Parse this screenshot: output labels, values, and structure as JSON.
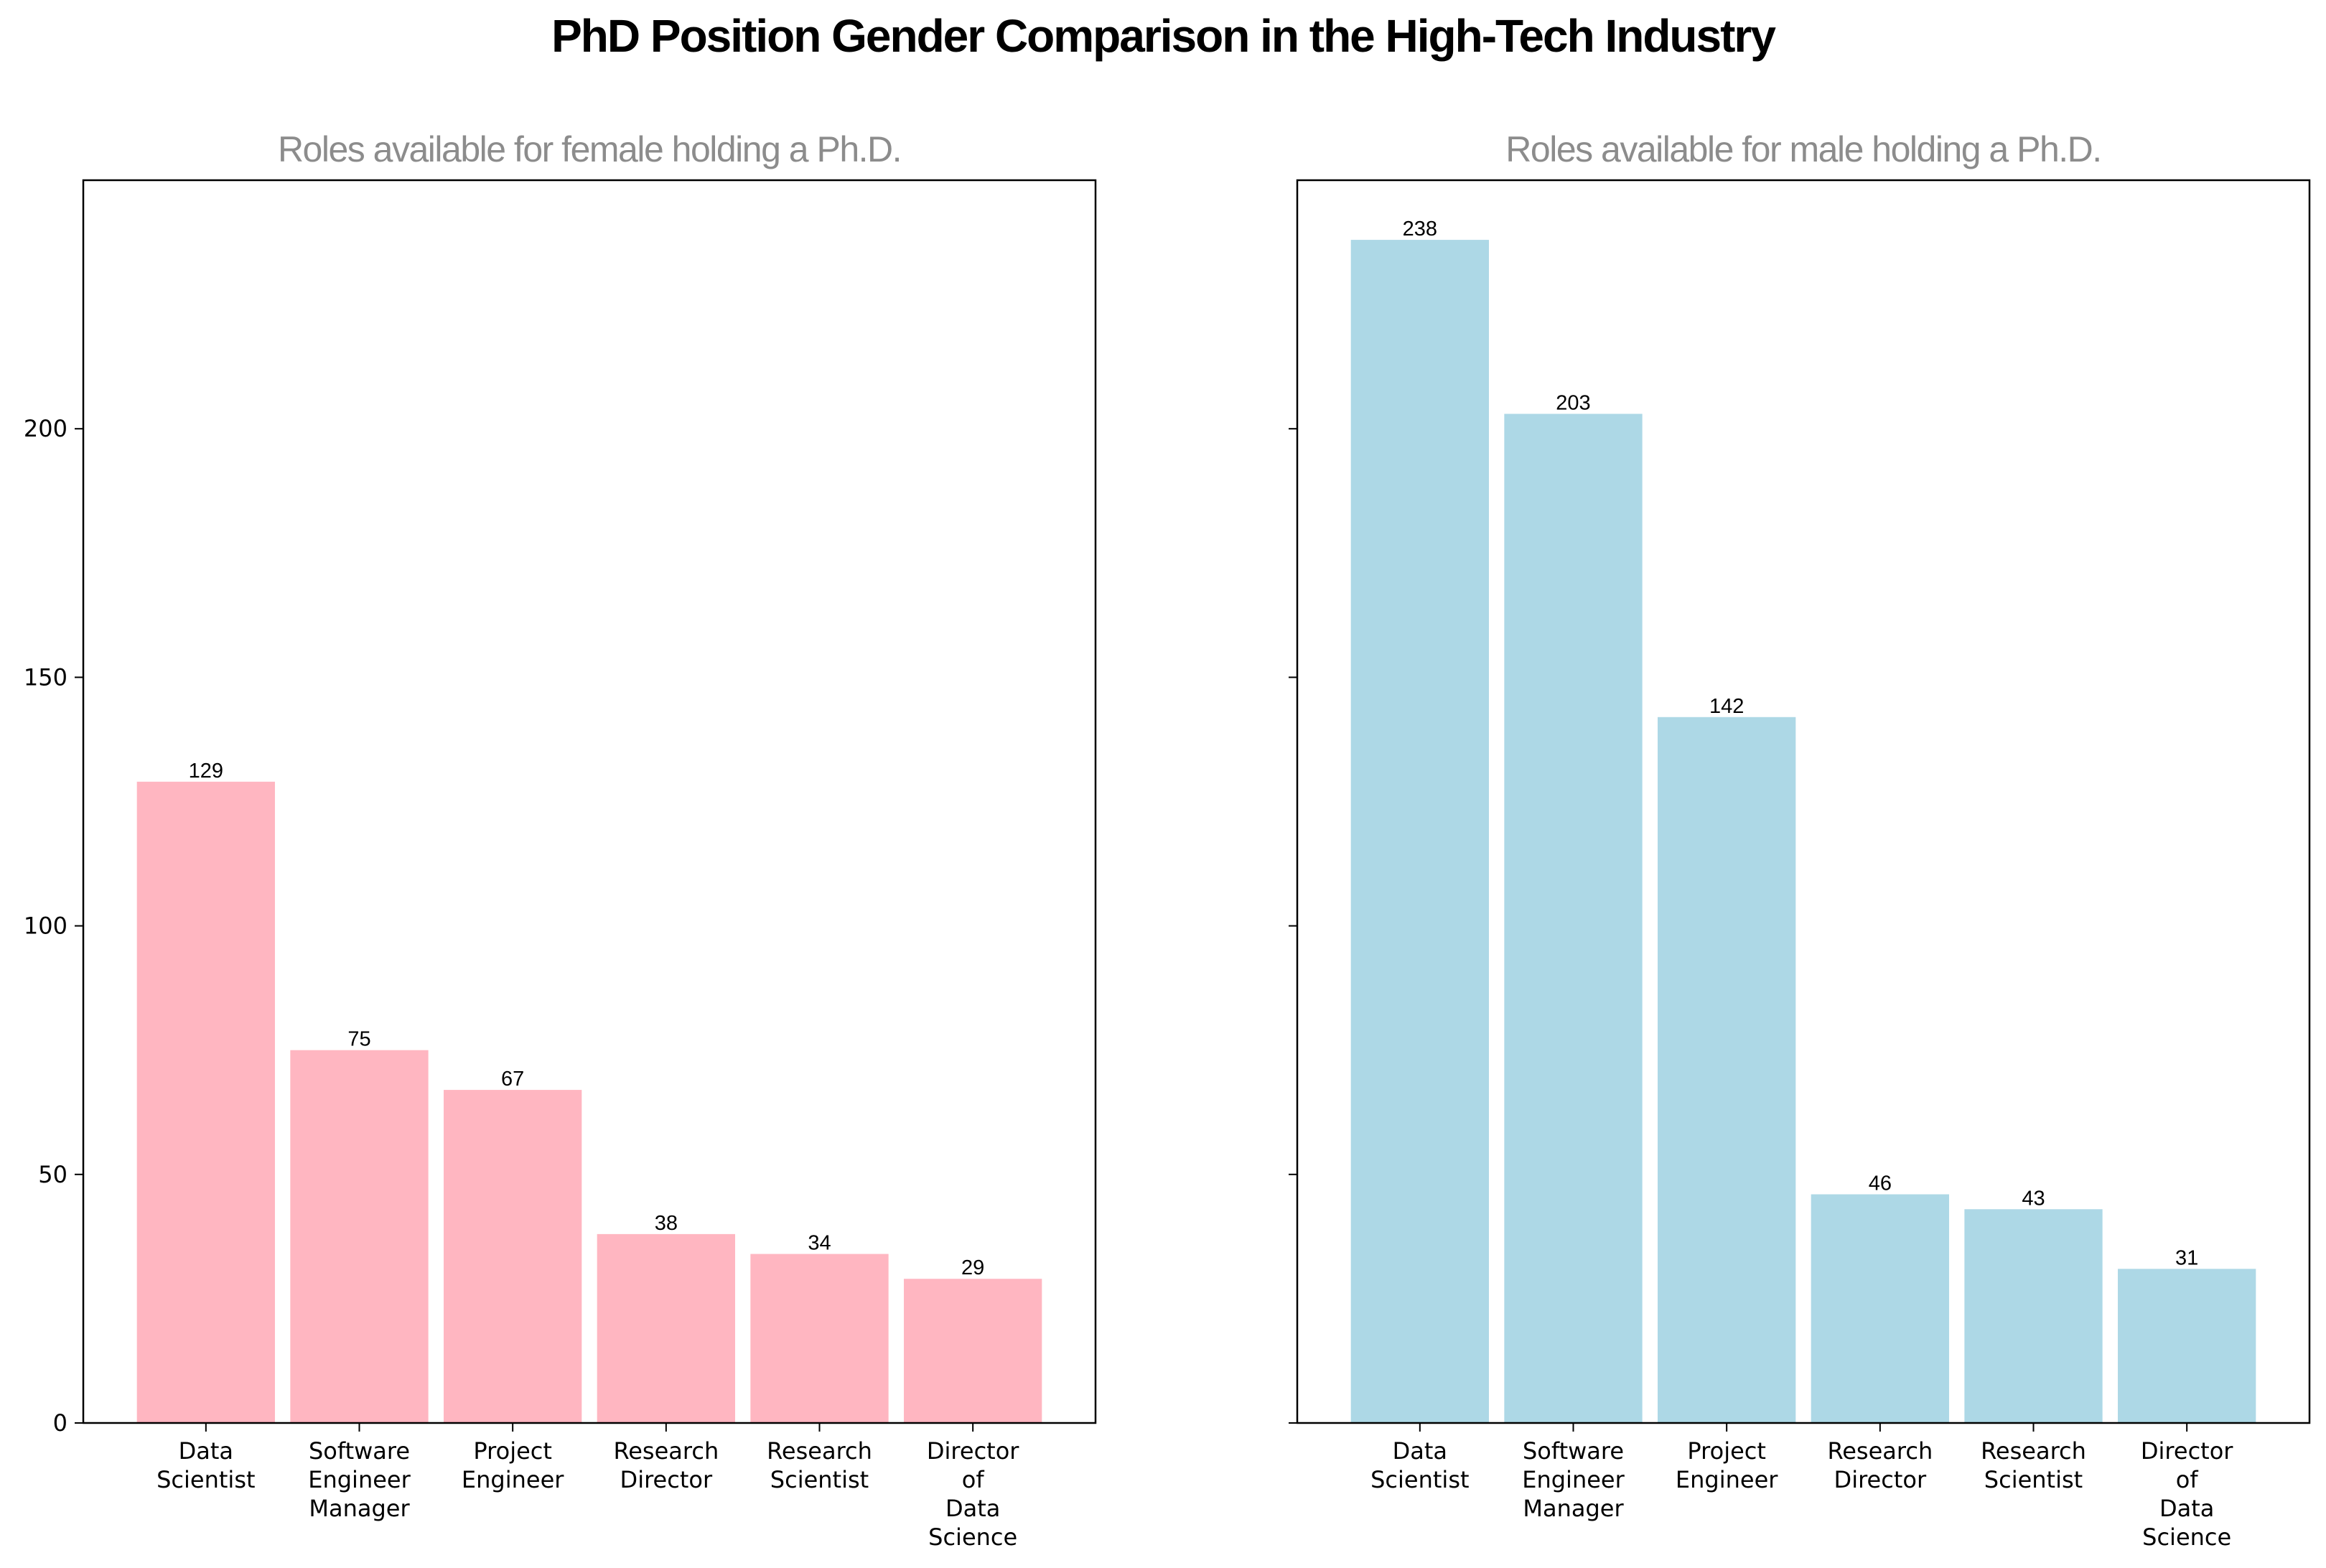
{
  "title": "PhD Position Gender Comparison in the High-Tech Industry",
  "chart_data": [
    {
      "type": "bar",
      "title": "Roles available for female holding a Ph.D.",
      "categories": [
        "Data\nScientist",
        "Software\nEngineer\nManager",
        "Project\nEngineer",
        "Research\nDirector",
        "Research\nScientist",
        "Director\nof\nData\nScience"
      ],
      "values": [
        129,
        75,
        67,
        38,
        34,
        29
      ],
      "color": "#ffb6c1",
      "ylim": [
        0,
        250
      ],
      "yticks": [
        0,
        50,
        100,
        150,
        200
      ],
      "grid": false
    },
    {
      "type": "bar",
      "title": "Roles available for male holding a Ph.D.",
      "categories": [
        "Data\nScientist",
        "Software\nEngineer\nManager",
        "Project\nEngineer",
        "Research\nDirector",
        "Research\nScientist",
        "Director\nof\nData\nScience"
      ],
      "values": [
        238,
        203,
        142,
        46,
        43,
        31
      ],
      "color": "#add8e6",
      "ylim": [
        0,
        250
      ],
      "yticks": [
        0,
        50,
        100,
        150,
        200
      ],
      "grid": false
    }
  ]
}
